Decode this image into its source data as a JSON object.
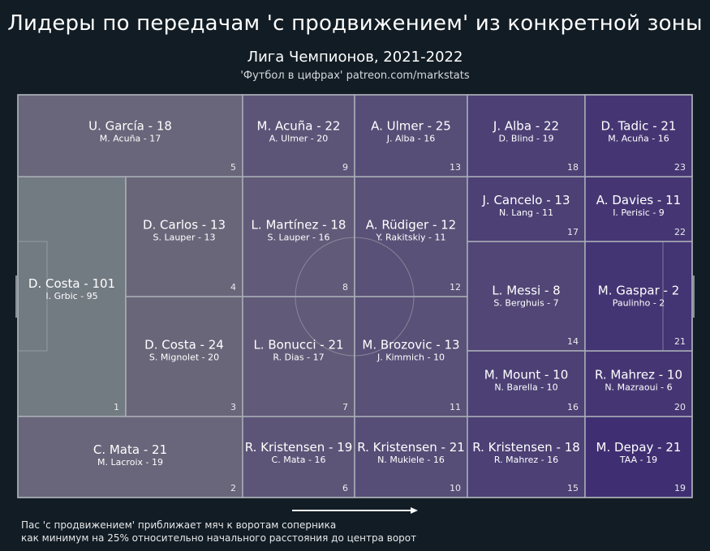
{
  "title": "Лидеры по передачам 'с продвижением' из конкретной зоны",
  "subtitle": "Лига Чемпионов, 2021-2022",
  "credit": "'Футбол в цифрах' patreon.com/markstats",
  "footnote": {
    "line1": "Пас 'с продвижением' приближает мяч к воротам соперника",
    "line2": "как минимум на 25% относительно начального расстояния до центра ворот"
  },
  "colors": {
    "background": "#121c24",
    "zone_low": "#6f6c7b",
    "zone_high": "#3f2f72",
    "lines": "#a9aeb6"
  },
  "chart_data": {
    "type": "heatmap",
    "zones": [
      {
        "id": "1",
        "leader": "D. Costa - 101",
        "second": "I. Grbic - 95",
        "intensity": 0.0
      },
      {
        "id": "2",
        "leader": "C. Mata - 21",
        "second": "M. Lacroix - 19",
        "intensity": 0.12
      },
      {
        "id": "3",
        "leader": "D. Costa - 24",
        "second": "S. Mignolet - 20",
        "intensity": 0.1
      },
      {
        "id": "4",
        "leader": "D. Carlos - 13",
        "second": "S. Lauper - 13",
        "intensity": 0.1
      },
      {
        "id": "5",
        "leader": "U. García - 18",
        "second": "M. Acuña - 17",
        "intensity": 0.12
      },
      {
        "id": "6",
        "leader": "R. Kristensen - 19",
        "second": "C. Mata - 16",
        "intensity": 0.38
      },
      {
        "id": "7",
        "leader": "L. Bonucci - 21",
        "second": "R. Dias - 17",
        "intensity": 0.3
      },
      {
        "id": "8",
        "leader": "L. Martínez - 18",
        "second": "S. Lauper - 16",
        "intensity": 0.3
      },
      {
        "id": "9",
        "leader": "M. Acuña - 22",
        "second": "A. Ulmer - 20",
        "intensity": 0.38
      },
      {
        "id": "10",
        "leader": "R. Kristensen - 21",
        "second": "N. Mukiele - 16",
        "intensity": 0.5
      },
      {
        "id": "11",
        "leader": "M. Brozovic - 13",
        "second": "J. Kimmich - 10",
        "intensity": 0.45
      },
      {
        "id": "12",
        "leader": "A. Rüdiger - 12",
        "second": "Y. Rakitskiy - 11",
        "intensity": 0.45
      },
      {
        "id": "13",
        "leader": "A. Ulmer - 25",
        "second": "J. Alba - 16",
        "intensity": 0.5
      },
      {
        "id": "14",
        "leader": "L. Messi - 8",
        "second": "S. Berghuis - 7",
        "intensity": 0.62
      },
      {
        "id": "15",
        "leader": "R. Kristensen - 18",
        "second": "R. Mahrez - 16",
        "intensity": 0.72
      },
      {
        "id": "16",
        "leader": "M. Mount - 10",
        "second": "N. Barella - 10",
        "intensity": 0.72
      },
      {
        "id": "17",
        "leader": "J. Cancelo - 13",
        "second": "N. Lang - 11",
        "intensity": 0.72
      },
      {
        "id": "18",
        "leader": "J. Alba - 22",
        "second": "D. Blind - 19",
        "intensity": 0.72
      },
      {
        "id": "19",
        "leader": "M. Depay - 21",
        "second": "TAA - 19",
        "intensity": 1.0
      },
      {
        "id": "20",
        "leader": "R. Mahrez - 10",
        "second": "N. Mazraoui - 6",
        "intensity": 0.88
      },
      {
        "id": "21",
        "leader": "M. Gaspar - 2",
        "second": "Paulinho - 2",
        "intensity": 0.92
      },
      {
        "id": "22",
        "leader": "A. Davies - 11",
        "second": "I. Perisic - 9",
        "intensity": 0.88
      },
      {
        "id": "23",
        "leader": "D. Tadic - 21",
        "second": "M. Acuña - 16",
        "intensity": 0.88
      }
    ]
  }
}
